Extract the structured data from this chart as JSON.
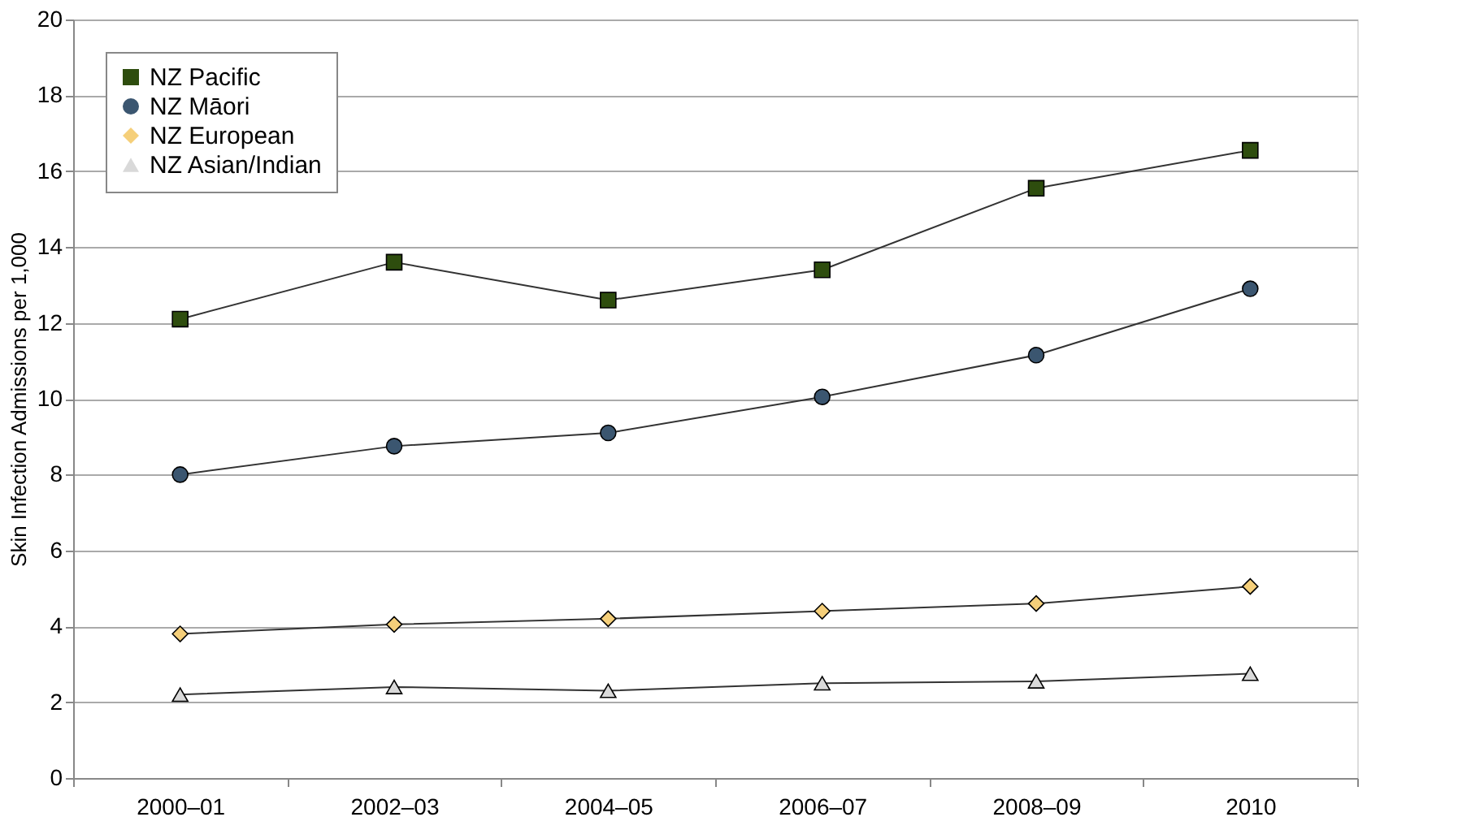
{
  "chart_data": {
    "type": "line",
    "ylabel": "Skin Infection Admissions per 1,000",
    "categories": [
      "2000–01",
      "2002–03",
      "2004–05",
      "2006–07",
      "2008–09",
      "2010"
    ],
    "series": [
      {
        "name": "NZ Pacific",
        "color": "#2e4d0e",
        "marker": "square",
        "values": [
          12.1,
          13.6,
          12.6,
          13.4,
          15.55,
          16.55
        ]
      },
      {
        "name": "NZ Māori",
        "color": "#3b5670",
        "marker": "circle",
        "values": [
          8.0,
          8.75,
          9.1,
          10.05,
          11.15,
          12.9
        ]
      },
      {
        "name": "NZ European",
        "color": "#f5cf7a",
        "marker": "diamond",
        "values": [
          3.8,
          4.05,
          4.2,
          4.4,
          4.6,
          5.05
        ]
      },
      {
        "name": "NZ Asian/Indian",
        "color": "#d9d9d9",
        "marker": "triangle",
        "values": [
          2.2,
          2.4,
          2.3,
          2.5,
          2.55,
          2.75
        ]
      }
    ],
    "ylim": [
      0,
      20
    ],
    "yticks": [
      0,
      2,
      4,
      6,
      8,
      10,
      12,
      14,
      16,
      18,
      20
    ],
    "grid": "y",
    "legend": "top left",
    "line_style": "solid"
  }
}
